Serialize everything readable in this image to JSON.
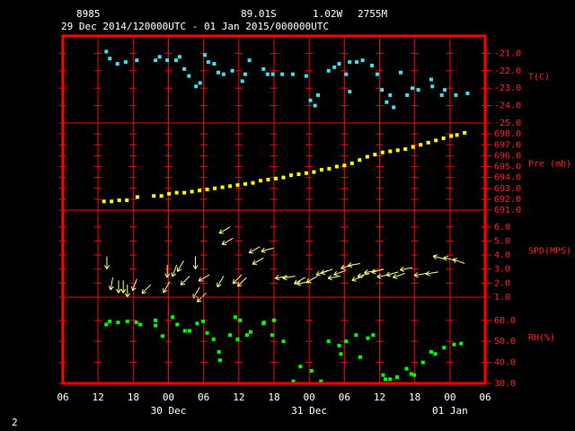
{
  "header": {
    "station": "8985",
    "lat": "89.01S",
    "lon": "1.02W",
    "elevation": "2755M",
    "period": "29 Dec 2014/120000UTC - 01 Jan 2015/000000UTC",
    "page": "2"
  },
  "chart_data": [
    {
      "type": "scatter",
      "ylabel": "T(C)",
      "color": "#40e0f0",
      "ylim": [
        -25,
        -20
      ],
      "yticks": [
        {
          "value": -21,
          "label": "-21.0"
        },
        {
          "value": -22,
          "label": "-22.0"
        },
        {
          "value": -23,
          "label": "-23.0"
        },
        {
          "value": -24,
          "label": "-24.0"
        },
        {
          "value": -25,
          "label": "-25.0"
        }
      ],
      "x": [
        7.4,
        8,
        9.3,
        10.7,
        12.6,
        15.8,
        16.5,
        17.8,
        19.3,
        19.9,
        20.7,
        21.5,
        22.7,
        23.4,
        24.2,
        24.8,
        25.8,
        26.5,
        27.4,
        28.9,
        30.6,
        31.8,
        31.1,
        34.2,
        34.9,
        35.8,
        37.4,
        39.2,
        41.5,
        42.2,
        43,
        43.5,
        45.3,
        46.3,
        47.1,
        48.3,
        48.9,
        48.9,
        50.1,
        51.1,
        52.7,
        53.6,
        54.4,
        55.2,
        55.8,
        56.4,
        57.6,
        58.7,
        59.6,
        60.6,
        62.8,
        63,
        64.6,
        65.1,
        67,
        69
      ],
      "values": [
        -20.9,
        -21.3,
        -21.6,
        -21.5,
        -21.4,
        -21.4,
        -21.2,
        -21.4,
        -21.4,
        -21.2,
        -21.9,
        -22.3,
        -22.9,
        -22.7,
        -21.1,
        -21.5,
        -21.6,
        -22.1,
        -22.2,
        -22,
        -22.6,
        -21.4,
        -22.2,
        -21.9,
        -22.2,
        -22.2,
        -22.2,
        -22.2,
        -22.3,
        -23.7,
        -24,
        -23.4,
        -22,
        -21.8,
        -21.6,
        -22.2,
        -23.2,
        -21.5,
        -21.5,
        -21.4,
        -21.7,
        -22.2,
        -23.1,
        -23.8,
        -23.4,
        -24.1,
        -22.1,
        -23.4,
        -23,
        -23.1,
        -22.5,
        -22.9,
        -23.4,
        -23.1,
        -23.4,
        -23.3
      ]
    },
    {
      "type": "scatter",
      "ylabel": "Pre (mb)",
      "color": "#ffff00",
      "ylim": [
        691,
        699
      ],
      "yticks": [
        {
          "value": 698,
          "label": "698.0"
        },
        {
          "value": 697,
          "label": "697.0"
        },
        {
          "value": 696,
          "label": "696.0"
        },
        {
          "value": 695,
          "label": "695.0"
        },
        {
          "value": 694,
          "label": "694.0"
        },
        {
          "value": 693,
          "label": "693.0"
        },
        {
          "value": 692,
          "label": "692.0"
        },
        {
          "value": 691,
          "label": "691.0"
        }
      ],
      "x": [
        7,
        8.3,
        9.6,
        10.9,
        12.7,
        15.5,
        16.8,
        18.1,
        19.4,
        20.7,
        22,
        23.3,
        24.6,
        25.9,
        27.2,
        28.5,
        29.8,
        31.1,
        32.4,
        33.7,
        35,
        36.3,
        37.6,
        38.9,
        40.2,
        41.5,
        42.8,
        44.1,
        45.4,
        46.7,
        48,
        49.3,
        50.6,
        51.9,
        53.2,
        54.5,
        55.8,
        57.1,
        58.4,
        59.7,
        61,
        62.3,
        63.6,
        64.9,
        66.2,
        67.2,
        68.5
      ],
      "values": [
        691.8,
        691.8,
        691.9,
        691.9,
        692.2,
        692.3,
        692.3,
        692.5,
        692.6,
        692.6,
        692.7,
        692.8,
        692.9,
        693,
        693.1,
        693.2,
        693.3,
        693.4,
        693.5,
        693.7,
        693.8,
        693.9,
        694,
        694.2,
        694.3,
        694.4,
        694.5,
        694.7,
        694.8,
        695,
        695.1,
        695.3,
        695.6,
        695.9,
        696.1,
        696.3,
        696.4,
        696.5,
        696.6,
        696.8,
        697,
        697.2,
        697.4,
        697.6,
        697.8,
        697.9,
        698.1
      ]
    },
    {
      "type": "wind",
      "ylabel": "SPD(MPS)",
      "color": "#ffff80",
      "ylim": [
        1,
        7.2
      ],
      "yticks": [
        {
          "value": 6,
          "label": "6.0"
        },
        {
          "value": 5,
          "label": "5.0"
        },
        {
          "value": 4,
          "label": "4.0"
        },
        {
          "value": 3,
          "label": "3.0"
        },
        {
          "value": 2,
          "label": "2.0"
        },
        {
          "value": 1,
          "label": "1.0"
        }
      ],
      "x": [
        7.5,
        8.5,
        9.5,
        10.3,
        11,
        12.6,
        15,
        17.8,
        18.2,
        19.4,
        20.6,
        21.6,
        22.6,
        23.3,
        24.4,
        25,
        27.4,
        28.5,
        29,
        30.5,
        31.3,
        33.6,
        34.2,
        35.9,
        38.3,
        39.6,
        41.3,
        42,
        43.4,
        45.2,
        46,
        47.3,
        48.2,
        49.5,
        50.7,
        51.3,
        52.3,
        53.5,
        54.7,
        55.7,
        57.2,
        58.3,
        59.6,
        62,
        64,
        65.2,
        67,
        68.5
      ],
      "values": [
        3.9,
        2.4,
        2.2,
        2.2,
        1.9,
        2.3,
        1.9,
        3.3,
        2.1,
        3.3,
        3.6,
        2.5,
        3.9,
        1.7,
        1.3,
        2.6,
        2.5,
        6,
        5.2,
        2.6,
        2.4,
        4.6,
        3.8,
        4.5,
        2.5,
        2.5,
        2.4,
        2.1,
        2.5,
        2.9,
        3,
        2.5,
        2.9,
        3.3,
        3.4,
        2.5,
        2.7,
        2.9,
        3,
        2.6,
        2.8,
        2.7,
        3.1,
        2.7,
        2.8,
        3.7,
        3.6,
        3.4
      ],
      "direction": [
        0,
        10,
        0,
        0,
        0,
        20,
        45,
        0,
        30,
        20,
        30,
        45,
        0,
        30,
        45,
        60,
        30,
        60,
        60,
        45,
        45,
        60,
        60,
        75,
        80,
        80,
        60,
        80,
        60,
        70,
        70,
        80,
        70,
        75,
        80,
        70,
        75,
        80,
        75,
        80,
        75,
        70,
        80,
        80,
        80,
        105,
        105,
        110
      ]
    },
    {
      "type": "scatter",
      "ylabel": "RH(%)",
      "color": "#00ff00",
      "ylim": [
        30,
        71
      ],
      "yticks": [
        {
          "value": 60,
          "label": "60.0"
        },
        {
          "value": 50,
          "label": "50.0"
        },
        {
          "value": 40,
          "label": "40.0"
        },
        {
          "value": 30,
          "label": "30.0"
        }
      ],
      "x": [
        7.4,
        8,
        9.4,
        11,
        12.5,
        13.2,
        15.8,
        15.8,
        17,
        18.7,
        19.5,
        20.8,
        21.6,
        22.9,
        23.9,
        24.6,
        25.7,
        26.6,
        26.8,
        28.5,
        29.8,
        29.4,
        30.2,
        31.4,
        32,
        34.2,
        35.7,
        34.3,
        36,
        37.6,
        39.3,
        40.5,
        42.4,
        44,
        45.3,
        47.1,
        47.4,
        48.3,
        50,
        50.7,
        52,
        52.9,
        54.6,
        55,
        55.8,
        57,
        58.6,
        59.4,
        59.9,
        61.4,
        62.8,
        63.5,
        65,
        66.7,
        67.9
      ],
      "values": [
        58,
        59.5,
        59,
        59.5,
        59,
        58,
        60,
        57.5,
        52.5,
        61.5,
        58,
        55,
        55,
        58.5,
        59.5,
        54,
        51,
        45,
        41,
        53,
        51,
        61.5,
        60,
        53,
        54.5,
        58.5,
        53,
        59,
        60,
        50,
        31,
        38,
        36,
        31,
        50,
        48,
        44,
        50,
        53,
        42.5,
        51.5,
        53,
        34,
        32,
        32,
        33,
        37,
        34.5,
        34,
        40,
        45,
        44,
        47,
        48.5,
        49
      ],
      "xlim": [
        0,
        72
      ],
      "xticks": [
        {
          "value": 0,
          "label": "06"
        },
        {
          "value": 6,
          "label": "12"
        },
        {
          "value": 12,
          "label": "18"
        },
        {
          "value": 18,
          "label": "00"
        },
        {
          "value": 24,
          "label": "06"
        },
        {
          "value": 30,
          "label": "12"
        },
        {
          "value": 36,
          "label": "18"
        },
        {
          "value": 42,
          "label": "00"
        },
        {
          "value": 48,
          "label": "06"
        },
        {
          "value": 54,
          "label": "12"
        },
        {
          "value": 60,
          "label": "18"
        },
        {
          "value": 66,
          "label": "00"
        },
        {
          "value": 72,
          "label": "06"
        }
      ],
      "date_labels": [
        {
          "value": 18,
          "label": "30 Dec"
        },
        {
          "value": 42,
          "label": "31 Dec"
        },
        {
          "value": 66,
          "label": "01 Jan"
        }
      ]
    }
  ]
}
